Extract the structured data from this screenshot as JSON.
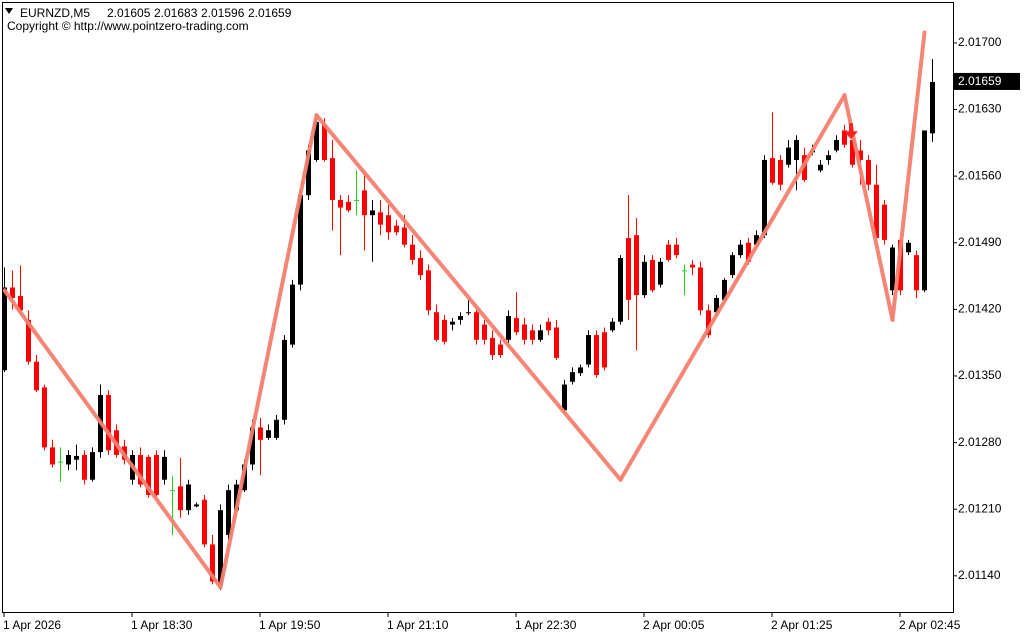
{
  "chart_data": {
    "type": "candlestick",
    "symbol": "EURNZD,M5",
    "copyright": "Copyright © http://www.pointzero-trading.com",
    "categories": [
      "1 Apr 2026",
      null,
      null,
      null,
      null,
      null,
      null,
      null,
      null,
      null,
      null,
      null,
      null,
      null,
      null,
      null,
      "1 Apr 18:30",
      null,
      null,
      null,
      null,
      null,
      null,
      null,
      null,
      null,
      null,
      null,
      null,
      null,
      null,
      null,
      "1 Apr 19:50",
      null,
      null,
      null,
      null,
      null,
      null,
      null,
      null,
      null,
      null,
      null,
      null,
      null,
      null,
      null,
      "1 Apr 21:10",
      null,
      null,
      null,
      null,
      null,
      null,
      null,
      null,
      null,
      null,
      null,
      null,
      null,
      null,
      null,
      "1 Apr 22:30",
      null,
      null,
      null,
      null,
      null,
      null,
      null,
      null,
      null,
      null,
      null,
      null,
      null,
      null,
      null,
      "2 Apr 00:05",
      null,
      null,
      null,
      null,
      null,
      null,
      null,
      null,
      null,
      null,
      null,
      null,
      null,
      null,
      null,
      "2 Apr 01:25",
      null,
      null,
      null,
      null,
      null,
      null,
      null,
      null,
      null,
      null,
      null,
      null,
      null,
      null,
      null,
      "2 Apr 02:45",
      null,
      null,
      null,
      null
    ],
    "open": [
      2.01356,
      2.01443,
      2.01434,
      2.01409,
      2.01365,
      2.01338,
      2.01275,
      2.0126,
      2.01257,
      2.01262,
      2.01267,
      2.01241,
      2.0127,
      2.0133,
      2.01293,
      2.01276,
      2.01241,
      2.01267,
      2.01265,
      2.01267,
      2.01241,
      2.0123,
      2.01234,
      2.01209,
      2.01213,
      2.0122,
      2.01173,
      2.01131,
      2.01183,
      2.01209,
      2.0123,
      2.01257,
      2.01296,
      2.01285,
      2.01285,
      2.01304,
      2.01383,
      2.01446,
      2.0154,
      2.01577,
      2.01614,
      2.01579,
      2.01535,
      2.01533,
      2.01535,
      2.01545,
      2.01519,
      2.01522,
      2.01519,
      2.01508,
      2.01506,
      2.01488,
      2.01474,
      2.01461,
      2.01417,
      2.01409,
      2.01404,
      2.01409,
      2.01416,
      2.01417,
      2.01404,
      2.0139,
      2.01383,
      2.01388,
      2.01411,
      2.01404,
      2.01398,
      2.01388,
      2.01407,
      2.01401,
      2.01314,
      2.01344,
      2.01353,
      2.01362,
      2.01393,
      2.01396,
      2.01398,
      2.01407,
      2.01495,
      2.01498,
      2.01435,
      2.01472,
      2.01446,
      2.01488,
      2.01488,
      2.01461,
      2.01467,
      2.01464,
      2.01419,
      2.01417,
      2.0143,
      2.01456,
      2.01477,
      2.0149,
      2.01488,
      2.01498,
      2.01579,
      2.01577,
      2.01572,
      2.01577,
      2.01582,
      2.01585,
      2.01566,
      2.01577,
      2.01587,
      2.01608,
      2.01598,
      2.01587,
      2.01577,
      2.01551,
      2.0153,
      2.0144,
      2.01493,
      2.0148,
      2.01477,
      2.0144,
      2.01605
    ],
    "high": [
      2.01464,
      2.01461,
      2.01466,
      2.01419,
      2.01372,
      2.01341,
      2.01283,
      2.01275,
      2.01272,
      2.01278,
      2.01272,
      2.01275,
      2.01341,
      2.01335,
      2.01299,
      2.01283,
      2.01272,
      2.01275,
      2.01267,
      2.01272,
      2.01272,
      2.01245,
      2.01264,
      2.01241,
      2.01217,
      2.01225,
      2.01183,
      2.01215,
      2.01236,
      2.01241,
      2.01262,
      2.01304,
      2.01306,
      2.01299,
      2.01309,
      2.01393,
      2.01451,
      2.01545,
      2.01593,
      2.01624,
      2.01621,
      2.01598,
      2.0154,
      2.0154,
      2.01566,
      2.01566,
      2.01535,
      2.01535,
      2.0153,
      2.01514,
      2.01519,
      2.01498,
      2.01482,
      2.01467,
      2.01425,
      2.01414,
      2.01411,
      2.01417,
      2.0143,
      2.01422,
      2.01409,
      2.01398,
      2.01388,
      2.01419,
      2.01438,
      2.01411,
      2.01404,
      2.01404,
      2.01411,
      2.01409,
      2.01346,
      2.01359,
      2.01362,
      2.01398,
      2.01398,
      2.01401,
      2.01411,
      2.01477,
      2.0154,
      2.01516,
      2.01477,
      2.01477,
      2.01474,
      2.01493,
      2.01495,
      2.01467,
      2.01472,
      2.0147,
      2.01425,
      2.01435,
      2.01453,
      2.0148,
      2.01493,
      2.01495,
      2.01503,
      2.01582,
      2.01627,
      2.01582,
      2.01598,
      2.01603,
      2.0159,
      2.01593,
      2.01577,
      2.01587,
      2.01603,
      2.01614,
      2.01611,
      2.01598,
      2.01582,
      2.01572,
      2.01535,
      2.01488,
      2.01495,
      2.01493,
      2.01482,
      2.01608,
      2.01683
    ],
    "low": [
      2.01354,
      2.0142,
      2.01414,
      2.01362,
      2.01333,
      2.01272,
      2.01254,
      2.01239,
      2.01251,
      2.01251,
      2.01236,
      2.01239,
      2.01264,
      2.01267,
      2.01264,
      2.01257,
      2.01236,
      2.01233,
      2.01222,
      2.01222,
      2.01236,
      2.01183,
      2.01201,
      2.01204,
      2.01212,
      2.0117,
      2.01131,
      2.01125,
      2.01178,
      2.01207,
      2.01228,
      2.01251,
      2.01246,
      2.01283,
      2.01283,
      2.01299,
      2.0138,
      2.0144,
      2.01535,
      2.01575,
      2.01575,
      2.01503,
      2.01477,
      2.01522,
      2.01519,
      2.01482,
      2.0147,
      2.01498,
      2.01493,
      2.01498,
      2.01485,
      2.01467,
      2.01451,
      2.01414,
      2.01386,
      2.01383,
      2.01398,
      2.01404,
      2.01414,
      2.01383,
      2.01383,
      2.01367,
      2.01369,
      2.01383,
      2.01393,
      2.01383,
      2.01383,
      2.01386,
      2.01393,
      2.01367,
      2.01312,
      2.01341,
      2.0135,
      2.01359,
      2.01348,
      2.01356,
      2.01396,
      2.01404,
      2.01409,
      2.01377,
      2.01432,
      2.01438,
      2.01443,
      2.0147,
      2.01474,
      2.01435,
      2.01456,
      2.01414,
      2.0139,
      2.01414,
      2.01428,
      2.01453,
      2.01474,
      2.01467,
      2.01485,
      2.01495,
      2.01551,
      2.01545,
      2.01569,
      2.01545,
      2.01554,
      2.01582,
      2.01564,
      2.01572,
      2.01585,
      2.0159,
      2.01569,
      2.01551,
      2.01545,
      2.01493,
      2.01488,
      2.01435,
      2.01435,
      2.01477,
      2.01432,
      2.01438,
      2.01596
    ],
    "close": [
      2.01443,
      2.01432,
      2.01419,
      2.01365,
      2.01335,
      2.01275,
      2.01257,
      2.0126,
      2.01267,
      2.01266,
      2.01241,
      2.0127,
      2.0133,
      2.01272,
      2.01267,
      2.01262,
      2.01267,
      2.01236,
      2.01225,
      2.01225,
      2.01265,
      2.0123,
      2.01209,
      2.01236,
      2.01215,
      2.01173,
      2.01134,
      2.01209,
      2.0123,
      2.01236,
      2.01257,
      2.01296,
      2.01283,
      2.01293,
      2.01304,
      2.01388,
      2.01446,
      2.0154,
      2.01587,
      2.01617,
      2.01577,
      2.01535,
      2.01527,
      2.01524,
      2.01535,
      2.01519,
      2.01524,
      2.01509,
      2.01501,
      2.01501,
      2.01488,
      2.01472,
      2.01456,
      2.01419,
      2.01388,
      2.01386,
      2.01407,
      2.01413,
      2.01417,
      2.01388,
      2.01388,
      2.01372,
      2.01372,
      2.01413,
      2.01396,
      2.01388,
      2.01388,
      2.01398,
      2.01398,
      2.01369,
      2.01341,
      2.01354,
      2.01359,
      2.01393,
      2.01351,
      2.01359,
      2.01407,
      2.01474,
      2.0143,
      2.01435,
      2.0147,
      2.0144,
      2.0147,
      2.01472,
      2.01477,
      2.01461,
      2.01464,
      2.01419,
      2.01393,
      2.01432,
      2.01451,
      2.01477,
      2.01488,
      2.0147,
      2.01498,
      2.01577,
      2.01553,
      2.01551,
      2.0159,
      2.01598,
      2.01556,
      2.01587,
      2.01572,
      2.01582,
      2.01598,
      2.01593,
      2.01572,
      2.01577,
      2.01551,
      2.01495,
      2.01493,
      2.01485,
      2.0144,
      2.0149,
      2.0144,
      2.01608,
      2.01659
    ],
    "up_color": "#000000",
    "down_color": "#ff0000",
    "doji_color": "#22cc22",
    "zigzag": [
      2.0144,
      null,
      null,
      null,
      null,
      null,
      null,
      null,
      null,
      null,
      null,
      null,
      null,
      null,
      null,
      null,
      null,
      null,
      null,
      null,
      null,
      null,
      null,
      null,
      null,
      null,
      null,
      2.01128,
      null,
      null,
      null,
      null,
      null,
      null,
      null,
      null,
      null,
      null,
      null,
      2.01624,
      null,
      null,
      null,
      null,
      null,
      null,
      null,
      null,
      null,
      null,
      null,
      null,
      null,
      null,
      null,
      null,
      null,
      null,
      null,
      null,
      null,
      null,
      null,
      null,
      null,
      null,
      null,
      null,
      null,
      null,
      null,
      null,
      null,
      null,
      null,
      null,
      null,
      2.01241,
      null,
      null,
      null,
      null,
      null,
      null,
      null,
      null,
      null,
      null,
      null,
      null,
      null,
      null,
      null,
      null,
      null,
      null,
      null,
      null,
      null,
      null,
      null,
      null,
      null,
      null,
      null,
      2.01645,
      null,
      null,
      null,
      null,
      null,
      2.01409,
      null,
      null,
      null,
      2.01711,
      null
    ],
    "zigzag_color": "#f4806f",
    "sell_arrows": [
      null,
      null,
      null,
      null,
      null,
      null,
      null,
      null,
      null,
      null,
      null,
      null,
      null,
      null,
      null,
      null,
      null,
      null,
      null,
      null,
      null,
      null,
      null,
      null,
      null,
      null,
      null,
      null,
      null,
      null,
      null,
      null,
      null,
      null,
      null,
      null,
      null,
      null,
      null,
      null,
      null,
      null,
      null,
      null,
      null,
      null,
      null,
      null,
      null,
      null,
      null,
      null,
      null,
      null,
      null,
      null,
      null,
      null,
      null,
      null,
      null,
      null,
      null,
      null,
      null,
      null,
      null,
      null,
      null,
      null,
      null,
      null,
      null,
      null,
      null,
      null,
      null,
      null,
      null,
      null,
      null,
      null,
      null,
      null,
      null,
      null,
      null,
      null,
      null,
      null,
      null,
      null,
      null,
      null,
      null,
      null,
      null,
      null,
      null,
      null,
      null,
      null,
      null,
      null,
      null,
      null,
      2.01603,
      null,
      null,
      null,
      null,
      null,
      null,
      null,
      null,
      null,
      null
    ],
    "arrow_color": "#ff2020",
    "ylim": [
      2.01102,
      2.01743
    ],
    "yticks": [
      {
        "value": 2.0114,
        "label": "2.01140"
      },
      {
        "value": 2.0121,
        "label": "2.01210"
      },
      {
        "value": 2.0128,
        "label": "2.01280"
      },
      {
        "value": 2.0135,
        "label": "2.01350"
      },
      {
        "value": 2.0142,
        "label": "2.01420"
      },
      {
        "value": 2.0149,
        "label": "2.01490"
      },
      {
        "value": 2.0156,
        "label": "2.01560"
      },
      {
        "value": 2.0163,
        "label": "2.01630"
      },
      {
        "value": 2.017,
        "label": "2.01700"
      }
    ]
  }
}
